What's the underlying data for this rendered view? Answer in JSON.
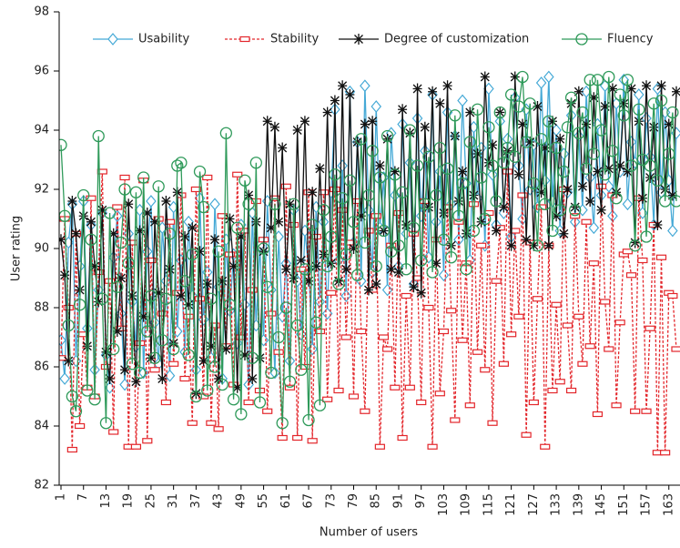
{
  "chart_data": {
    "type": "line",
    "x_label": "Number of users",
    "y_label": "User rating",
    "legend": "top",
    "xlim": [
      1,
      165
    ],
    "ylim": [
      82,
      98
    ],
    "xticks": [
      1,
      7,
      13,
      19,
      25,
      31,
      37,
      43,
      49,
      55,
      61,
      67,
      73,
      79,
      85,
      91,
      97,
      103,
      109,
      115,
      121,
      127,
      133,
      139,
      145,
      151,
      157,
      163
    ],
    "yticks": [
      82,
      84,
      86,
      88,
      90,
      92,
      94,
      96,
      98
    ],
    "x": [
      1,
      2,
      3,
      4,
      5,
      6,
      7,
      8,
      9,
      10,
      11,
      12,
      13,
      14,
      15,
      16,
      17,
      18,
      19,
      20,
      21,
      22,
      23,
      24,
      25,
      26,
      27,
      28,
      29,
      30,
      31,
      32,
      33,
      34,
      35,
      36,
      37,
      38,
      39,
      40,
      41,
      42,
      43,
      44,
      45,
      46,
      47,
      48,
      49,
      50,
      51,
      52,
      53,
      54,
      55,
      56,
      57,
      58,
      59,
      60,
      61,
      62,
      63,
      64,
      65,
      66,
      67,
      68,
      69,
      70,
      71,
      72,
      73,
      74,
      75,
      76,
      77,
      78,
      79,
      80,
      81,
      82,
      83,
      84,
      85,
      86,
      87,
      88,
      89,
      90,
      91,
      92,
      93,
      94,
      95,
      96,
      97,
      98,
      99,
      100,
      101,
      102,
      103,
      104,
      105,
      106,
      107,
      108,
      109,
      110,
      111,
      112,
      113,
      114,
      115,
      116,
      117,
      118,
      119,
      120,
      121,
      122,
      123,
      124,
      125,
      126,
      127,
      128,
      129,
      130,
      131,
      132,
      133,
      134,
      135,
      136,
      137,
      138,
      139,
      140,
      141,
      142,
      143,
      144,
      145,
      146,
      147,
      148,
      149,
      150,
      151,
      152,
      153,
      154,
      155,
      156,
      157,
      158,
      159,
      160,
      161,
      162,
      163,
      164,
      165
    ],
    "series": [
      {
        "name": "Usability",
        "color": "#45a9d6",
        "marker": "diamond",
        "linestyle": "solid",
        "values": [
          86.9,
          85.6,
          90.2,
          91.5,
          86.2,
          89.4,
          91.6,
          87.3,
          90.8,
          85.9,
          88.6,
          91.2,
          86.4,
          85.3,
          89.7,
          91.1,
          87.8,
          85.4,
          90.5,
          88.2,
          86.7,
          91.3,
          85.8,
          89.9,
          91.6,
          87.5,
          86.1,
          90.7,
          88.9,
          85.7,
          91.4,
          87.2,
          89.6,
          86.5,
          90.9,
          88.4,
          85.9,
          91.7,
          87.6,
          89.2,
          86.3,
          91.5,
          88.7,
          85.6,
          90.3,
          87.9,
          89.8,
          86.8,
          90.8,
          88.1,
          85.4,
          91.2,
          87.4,
          90.1,
          86.9,
          91.6,
          88.6,
          85.8,
          90.4,
          87.7,
          89.5,
          86.2,
          91.3,
          88.9,
          87.1,
          90.6,
          89.3,
          86.6,
          91.4,
          88.2,
          90.9,
          87.8,
          91.9,
          94.7,
          89.6,
          92.8,
          88.4,
          95.3,
          90.2,
          93.6,
          88.9,
          95.5,
          91.3,
          89.2,
          94.8,
          90.7,
          92.4,
          88.6,
          93.9,
          91.8,
          89.4,
          94.2,
          90.5,
          92.9,
          88.8,
          94.4,
          91.1,
          93.3,
          89.7,
          95.2,
          90.9,
          92.6,
          89.1,
          94.6,
          91.5,
          93.8,
          90.3,
          95.0,
          92.2,
          89.6,
          94.1,
          91.7,
          93.4,
          90.1,
          95.4,
          92.5,
          90.8,
          94.3,
          91.2,
          93.7,
          90.4,
          95.1,
          92.8,
          91.0,
          94.7,
          92.0,
          93.5,
          91.4,
          95.6,
          92.3,
          95.8,
          91.6,
          94.0,
          90.6,
          93.2,
          91.9,
          94.5,
          90.9,
          93.8,
          91.3,
          95.3,
          92.4,
          90.7,
          94.2,
          91.8,
          95.5,
          92.1,
          91.1,
          94.9,
          92.6,
          95.7,
          91.5,
          93.6,
          92.9,
          95.2,
          91.2,
          94.4,
          93.1,
          90.8,
          95.4,
          91.9,
          94.6,
          92.3,
          90.6,
          93.9
        ]
      },
      {
        "name": "Stability",
        "color": "#e3262b",
        "marker": "rect",
        "linestyle": "dashed",
        "values": [
          86.3,
          91.0,
          88.0,
          83.2,
          90.5,
          84.0,
          87.1,
          85.3,
          91.7,
          85.0,
          89.2,
          92.6,
          86.0,
          88.9,
          83.8,
          91.4,
          87.3,
          92.4,
          83.3,
          90.2,
          83.3,
          86.8,
          92.3,
          83.5,
          89.6,
          85.9,
          91.0,
          87.8,
          84.8,
          90.9,
          86.1,
          88.5,
          91.8,
          85.6,
          87.7,
          84.1,
          92.0,
          88.3,
          85.0,
          92.4,
          84.1,
          87.4,
          83.9,
          91.1,
          86.7,
          89.8,
          85.4,
          92.5,
          87.0,
          90.6,
          84.8,
          88.6,
          91.6,
          85.2,
          90.3,
          84.5,
          87.8,
          91.7,
          86.5,
          83.6,
          92.1,
          85.3,
          90.8,
          83.6,
          89.3,
          86.0,
          91.9,
          83.5,
          90.4,
          87.2,
          91.9,
          84.9,
          88.5,
          92.0,
          85.2,
          91.3,
          87.0,
          90.2,
          85.0,
          91.6,
          87.2,
          84.5,
          90.6,
          88.6,
          91.1,
          83.3,
          87.0,
          86.6,
          90.1,
          85.3,
          91.2,
          83.6,
          88.4,
          85.3,
          90.5,
          89.0,
          84.8,
          91.6,
          88.0,
          83.3,
          90.3,
          85.1,
          87.2,
          91.4,
          87.9,
          84.2,
          90.9,
          86.9,
          89.5,
          84.7,
          91.5,
          86.5,
          90.1,
          85.9,
          91.2,
          84.1,
          88.9,
          90.7,
          86.1,
          92.6,
          87.1,
          90.6,
          87.7,
          91.8,
          83.7,
          90.2,
          84.8,
          88.3,
          91.4,
          83.3,
          90.1,
          85.2,
          88.1,
          85.5,
          92.0,
          87.4,
          85.2,
          91.1,
          87.7,
          86.1,
          90.9,
          86.7,
          89.5,
          84.4,
          92.1,
          88.2,
          86.6,
          91.8,
          84.7,
          87.5,
          89.8,
          89.9,
          89.1,
          84.5,
          91.7,
          89.6,
          84.5,
          87.3,
          90.8,
          83.1,
          89.7,
          83.1,
          88.5,
          88.4,
          86.6
        ]
      },
      {
        "name": "Degree of customization",
        "color": "#111111",
        "marker": "asterisk",
        "linestyle": "solid",
        "values": [
          90.3,
          89.1,
          86.2,
          91.6,
          90.5,
          88.6,
          91.1,
          86.7,
          90.9,
          89.4,
          88.2,
          91.3,
          86.5,
          85.6,
          90.5,
          87.2,
          89.0,
          85.9,
          91.5,
          88.4,
          85.5,
          90.6,
          87.7,
          91.2,
          86.3,
          90.9,
          88.5,
          85.6,
          91.6,
          89.3,
          86.8,
          91.9,
          88.4,
          90.4,
          88.1,
          90.7,
          85.1,
          89.9,
          86.2,
          88.8,
          86.7,
          90.3,
          85.6,
          88.9,
          86.6,
          91.0,
          89.4,
          85.3,
          90.4,
          86.4,
          91.8,
          85.6,
          90.9,
          86.3,
          89.9,
          94.3,
          90.7,
          94.1,
          90.9,
          93.4,
          89.3,
          91.5,
          89.0,
          94.0,
          89.6,
          94.3,
          88.9,
          91.9,
          89.4,
          92.7,
          89.8,
          94.6,
          89.5,
          95.0,
          88.9,
          95.5,
          89.3,
          95.2,
          90.0,
          93.6,
          91.1,
          94.2,
          88.6,
          94.3,
          88.8,
          92.8,
          90.6,
          93.7,
          89.3,
          92.6,
          89.2,
          94.7,
          90.8,
          93.9,
          88.7,
          95.4,
          88.5,
          94.1,
          91.4,
          95.3,
          89.5,
          94.9,
          91.2,
          95.5,
          90.1,
          93.8,
          91.6,
          92.6,
          90.5,
          94.6,
          91.8,
          93.2,
          90.9,
          95.8,
          92.9,
          93.5,
          90.6,
          94.6,
          91.4,
          93.3,
          90.1,
          95.8,
          92.5,
          94.2,
          90.3,
          93.6,
          90.1,
          94.8,
          91.9,
          93.4,
          90.1,
          94.3,
          91.1,
          93.7,
          90.5,
          92.0,
          94.9,
          91.4,
          95.3,
          92.1,
          94.2,
          91.6,
          95.1,
          92.6,
          91.3,
          94.8,
          92.7,
          95.4,
          91.9,
          92.8,
          94.9,
          92.6,
          95.4,
          90.2,
          94.3,
          91.7,
          95.5,
          92.4,
          94.1,
          90.8,
          95.5,
          92.0,
          94.2,
          91.8,
          95.3
        ]
      },
      {
        "name": "Fluency",
        "color": "#2f9a5a",
        "marker": "circle",
        "linestyle": "solid",
        "values": [
          93.5,
          91.1,
          87.4,
          85.0,
          84.5,
          88.1,
          91.8,
          85.2,
          90.3,
          84.9,
          93.8,
          88.3,
          84.1,
          91.2,
          86.6,
          88.7,
          90.2,
          92.0,
          89.5,
          86.1,
          91.9,
          85.8,
          92.4,
          87.2,
          88.4,
          86.3,
          92.1,
          86.9,
          88.3,
          90.5,
          86.6,
          92.8,
          92.9,
          88.9,
          86.4,
          89.8,
          85.0,
          92.6,
          91.4,
          85.2,
          88.3,
          86.0,
          89.9,
          85.4,
          93.9,
          88.1,
          84.9,
          90.7,
          84.4,
          92.3,
          91.5,
          86.3,
          92.9,
          84.8,
          90.0,
          88.7,
          85.8,
          91.5,
          87.0,
          84.1,
          88.0,
          85.5,
          91.5,
          87.4,
          85.9,
          89.3,
          84.2,
          90.8,
          87.5,
          84.7,
          91.3,
          89.4,
          90.4,
          92.5,
          88.8,
          91.7,
          89.8,
          92.3,
          90.9,
          89.1,
          93.7,
          90.2,
          91.8,
          93.3,
          89.4,
          92.4,
          90.6,
          93.8,
          89.9,
          92.5,
          90.1,
          91.9,
          89.3,
          94.0,
          90.7,
          92.8,
          89.6,
          91.5,
          93.1,
          89.2,
          91.8,
          93.4,
          90.3,
          92.7,
          89.7,
          94.5,
          91.1,
          92.2,
          89.3,
          93.6,
          90.6,
          94.7,
          92.4,
          91.0,
          94.1,
          92.8,
          91.6,
          94.6,
          92.9,
          93.4,
          95.2,
          93.1,
          94.8,
          95.8,
          93.6,
          94.9,
          92.2,
          90.1,
          93.7,
          91.5,
          94.3,
          90.6,
          93.4,
          91.3,
          92.6,
          94.1,
          95.1,
          91.3,
          93.9,
          94.6,
          92.7,
          95.7,
          93.2,
          95.7,
          94.0,
          92.5,
          95.8,
          93.3,
          91.7,
          95.2,
          94.5,
          95.7,
          92.8,
          90.1,
          94.7,
          93.0,
          90.4,
          92.8,
          94.9,
          92.3,
          95.0,
          91.6,
          93.2,
          94.6,
          91.6
        ]
      }
    ]
  }
}
